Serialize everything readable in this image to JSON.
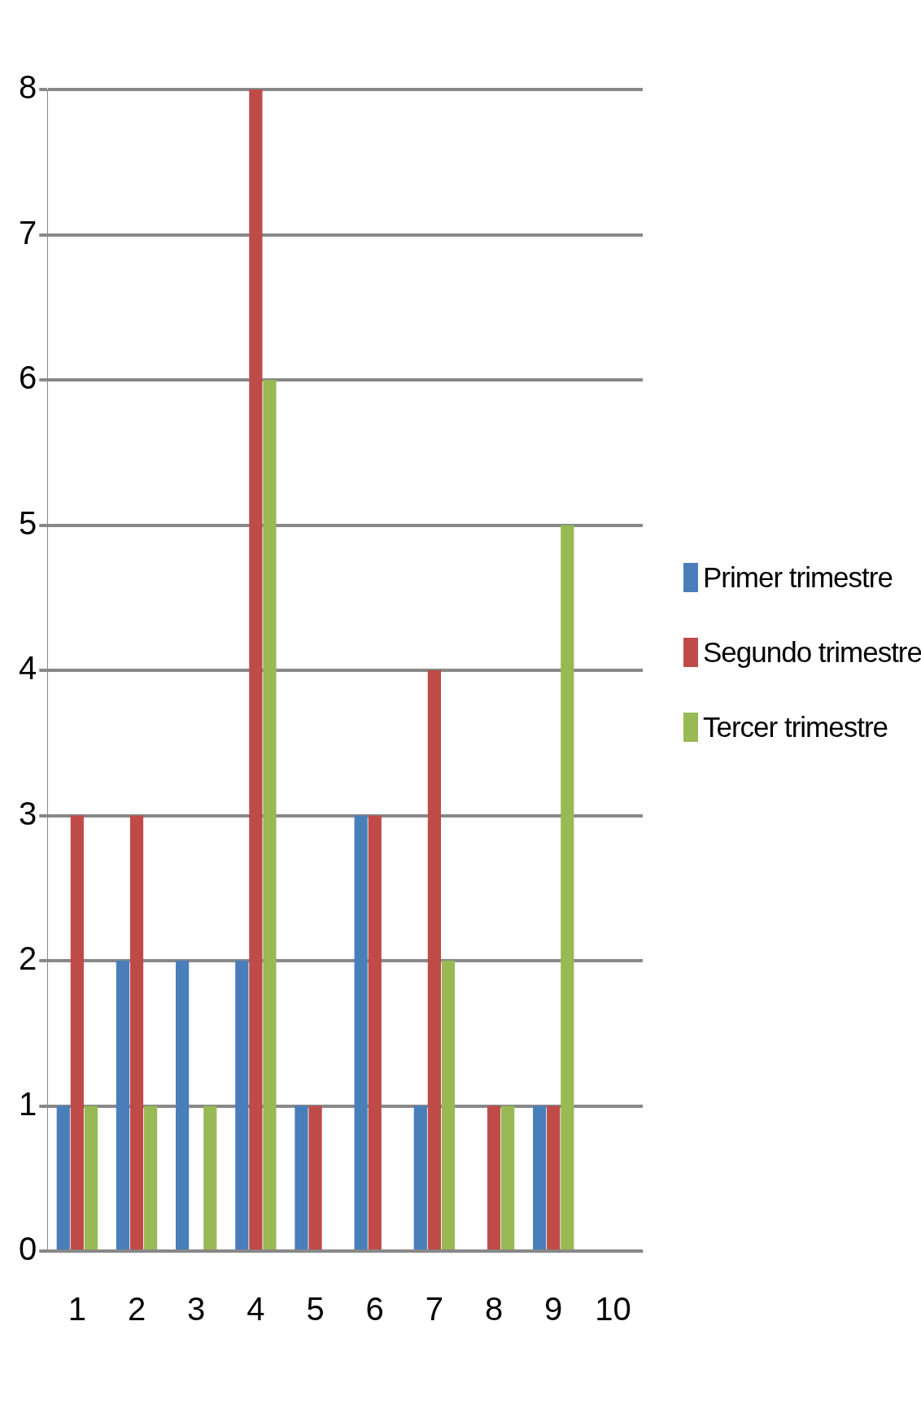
{
  "chart_data": {
    "type": "bar",
    "categories": [
      "1",
      "2",
      "3",
      "4",
      "5",
      "6",
      "7",
      "8",
      "9",
      "10"
    ],
    "series": [
      {
        "name": "Primer trimestre",
        "color": "#4a7ebb",
        "values": [
          1,
          2,
          2,
          2,
          1,
          3,
          1,
          0,
          1,
          0
        ]
      },
      {
        "name": "Segundo trimestre",
        "color": "#be4b48",
        "values": [
          3,
          3,
          0,
          8,
          1,
          3,
          4,
          1,
          1,
          0
        ]
      },
      {
        "name": "Tercer trimestre",
        "color": "#98b954",
        "values": [
          1,
          1,
          1,
          6,
          0,
          0,
          2,
          1,
          5,
          0
        ]
      }
    ],
    "ylim": [
      0,
      8
    ],
    "yticks": [
      0,
      1,
      2,
      3,
      4,
      5,
      6,
      7,
      8
    ],
    "grid": "y",
    "legend": "right"
  }
}
